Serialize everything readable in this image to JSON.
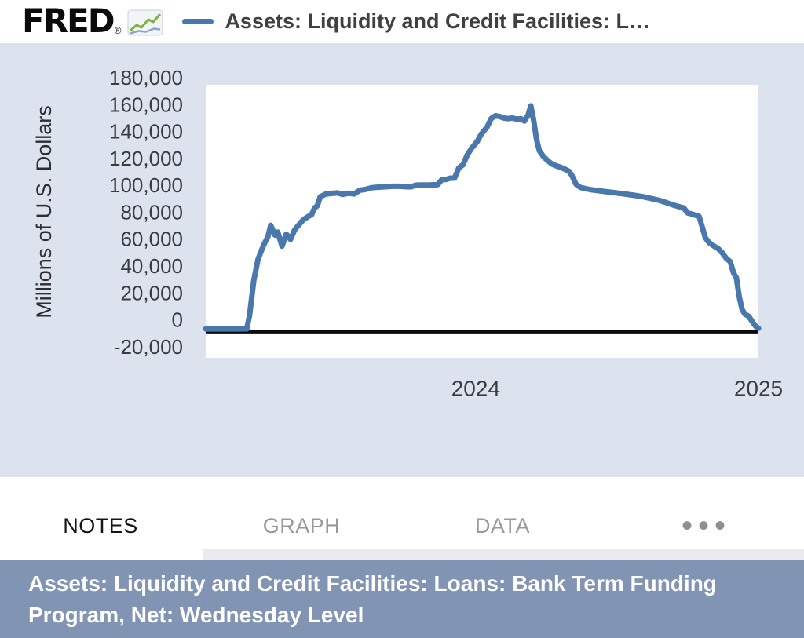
{
  "header": {
    "logo_text": "FRED",
    "registered_mark": "®",
    "legend_series_color": "#4a78ad",
    "series_title_truncated": "Assets: Liquidity and Credit Facilities: L…"
  },
  "chart_data": {
    "type": "line",
    "title": "Assets: Liquidity and Credit Facilities: Loans: Bank Term Funding Program, Net: Wednesday Level",
    "ylabel": "Millions of U.S. Dollars",
    "xlabel": "",
    "grid": false,
    "legend_position": "top",
    "line_color": "#4a78ad",
    "zero_line": 0,
    "x_domain": [
      2023.045,
      2025.0
    ],
    "y_domain": [
      -19500,
      183500
    ],
    "yticks": [
      {
        "value": 180000,
        "label": "180,000"
      },
      {
        "value": 160000,
        "label": "160,000"
      },
      {
        "value": 140000,
        "label": "140,000"
      },
      {
        "value": 120000,
        "label": "120,000"
      },
      {
        "value": 100000,
        "label": "100,000"
      },
      {
        "value": 80000,
        "label": "80,000"
      },
      {
        "value": 60000,
        "label": "60,000"
      },
      {
        "value": 40000,
        "label": "40,000"
      },
      {
        "value": 20000,
        "label": "20,000"
      },
      {
        "value": 0,
        "label": "0"
      },
      {
        "value": -20000,
        "label": "-20,000"
      }
    ],
    "xticks": [
      {
        "value": 2024,
        "label": "2024"
      },
      {
        "value": 2025,
        "label": "2025"
      }
    ],
    "series": [
      {
        "name": "Assets: Liquidity and Credit Facilities: Loans: Bank Term Funding Program, Net: Wednesday Level",
        "points": [
          [
            2023.045,
            2000
          ],
          [
            2023.19,
            2000
          ],
          [
            2023.2,
            11900
          ],
          [
            2023.215,
            38000
          ],
          [
            2023.23,
            53700
          ],
          [
            2023.25,
            64400
          ],
          [
            2023.265,
            70500
          ],
          [
            2023.275,
            79000
          ],
          [
            2023.29,
            71800
          ],
          [
            2023.3,
            74000
          ],
          [
            2023.315,
            63500
          ],
          [
            2023.33,
            72500
          ],
          [
            2023.345,
            68500
          ],
          [
            2023.36,
            75800
          ],
          [
            2023.375,
            79500
          ],
          [
            2023.39,
            83100
          ],
          [
            2023.405,
            85200
          ],
          [
            2023.42,
            87000
          ],
          [
            2023.43,
            91900
          ],
          [
            2023.44,
            93600
          ],
          [
            2023.45,
            100200
          ],
          [
            2023.47,
            102300
          ],
          [
            2023.49,
            102700
          ],
          [
            2023.51,
            103100
          ],
          [
            2023.53,
            102000
          ],
          [
            2023.55,
            102900
          ],
          [
            2023.57,
            102300
          ],
          [
            2023.59,
            105100
          ],
          [
            2023.61,
            105700
          ],
          [
            2023.63,
            106900
          ],
          [
            2023.65,
            107300
          ],
          [
            2023.67,
            107500
          ],
          [
            2023.69,
            107800
          ],
          [
            2023.71,
            108000
          ],
          [
            2023.73,
            108000
          ],
          [
            2023.75,
            107700
          ],
          [
            2023.77,
            107600
          ],
          [
            2023.79,
            108900
          ],
          [
            2023.81,
            109000
          ],
          [
            2023.83,
            108900
          ],
          [
            2023.85,
            109100
          ],
          [
            2023.865,
            109200
          ],
          [
            2023.88,
            112900
          ],
          [
            2023.895,
            113100
          ],
          [
            2023.91,
            114100
          ],
          [
            2023.925,
            114100
          ],
          [
            2023.94,
            121700
          ],
          [
            2023.955,
            124000
          ],
          [
            2023.97,
            131300
          ],
          [
            2023.985,
            136200
          ],
          [
            2024.005,
            141200
          ],
          [
            2024.02,
            146900
          ],
          [
            2024.04,
            152000
          ],
          [
            2024.055,
            158500
          ],
          [
            2024.07,
            160500
          ],
          [
            2024.085,
            159800
          ],
          [
            2024.1,
            158700
          ],
          [
            2024.115,
            158300
          ],
          [
            2024.13,
            158800
          ],
          [
            2024.145,
            157900
          ],
          [
            2024.16,
            158300
          ],
          [
            2024.172,
            156500
          ],
          [
            2024.185,
            160800
          ],
          [
            2024.195,
            167800
          ],
          [
            2024.205,
            157000
          ],
          [
            2024.215,
            143000
          ],
          [
            2024.225,
            134500
          ],
          [
            2024.24,
            130000
          ],
          [
            2024.255,
            127000
          ],
          [
            2024.27,
            124500
          ],
          [
            2024.285,
            123200
          ],
          [
            2024.3,
            122200
          ],
          [
            2024.315,
            120800
          ],
          [
            2024.33,
            119200
          ],
          [
            2024.34,
            116200
          ],
          [
            2024.355,
            109500
          ],
          [
            2024.37,
            107200
          ],
          [
            2024.39,
            106200
          ],
          [
            2024.41,
            105400
          ],
          [
            2024.44,
            104600
          ],
          [
            2024.47,
            103800
          ],
          [
            2024.5,
            103000
          ],
          [
            2024.53,
            102200
          ],
          [
            2024.56,
            101300
          ],
          [
            2024.59,
            100300
          ],
          [
            2024.62,
            99000
          ],
          [
            2024.65,
            97500
          ],
          [
            2024.68,
            95500
          ],
          [
            2024.7,
            94000
          ],
          [
            2024.72,
            92800
          ],
          [
            2024.735,
            92000
          ],
          [
            2024.75,
            88200
          ],
          [
            2024.77,
            87000
          ],
          [
            2024.79,
            85600
          ],
          [
            2024.8,
            78500
          ],
          [
            2024.812,
            69800
          ],
          [
            2024.825,
            66200
          ],
          [
            2024.84,
            64000
          ],
          [
            2024.858,
            61500
          ],
          [
            2024.872,
            58500
          ],
          [
            2024.886,
            54500
          ],
          [
            2024.9,
            52000
          ],
          [
            2024.912,
            43500
          ],
          [
            2024.922,
            40000
          ],
          [
            2024.932,
            26000
          ],
          [
            2024.942,
            16500
          ],
          [
            2024.952,
            13000
          ],
          [
            2024.965,
            11500
          ],
          [
            2024.978,
            7500
          ],
          [
            2024.99,
            4000
          ],
          [
            2025.0,
            2500
          ]
        ]
      }
    ]
  },
  "tabs": [
    {
      "label": "NOTES",
      "active": true
    },
    {
      "label": "GRAPH",
      "active": false
    },
    {
      "label": "DATA",
      "active": false
    },
    {
      "label": "•••",
      "active": false
    }
  ],
  "banner": {
    "bg": "#8294b4",
    "lines": [
      "Assets: Liquidity and Credit Facilities: Loans: Bank Term Funding",
      "Program, Net: Wednesday Level"
    ]
  }
}
